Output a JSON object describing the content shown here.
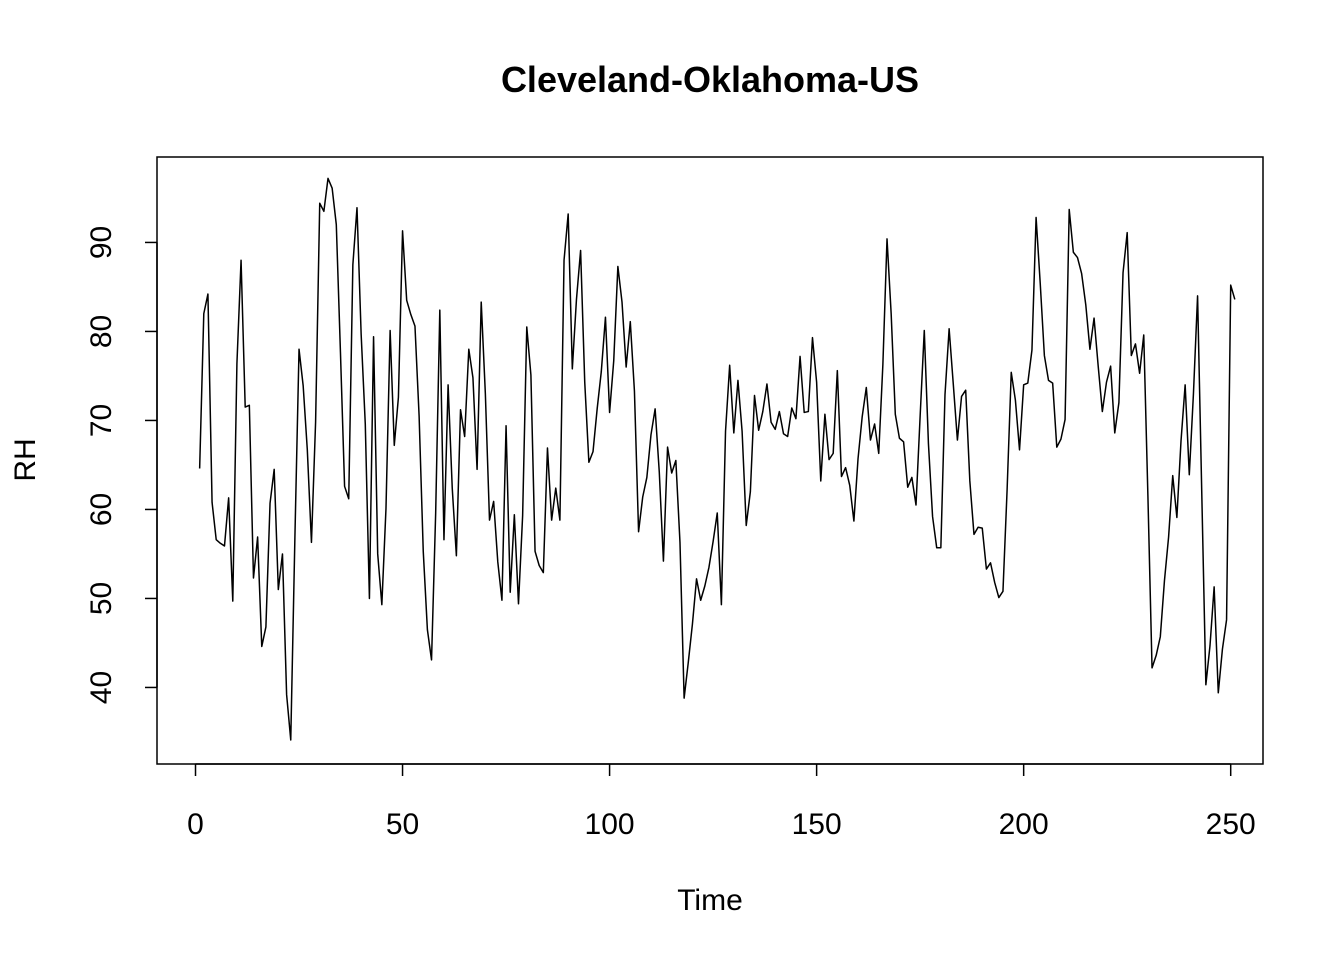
{
  "chart_data": {
    "type": "line",
    "title": "Cleveland-Oklahoma-US",
    "xlabel": "Time",
    "ylabel": "RH",
    "xlim": [
      -9.3,
      257.8
    ],
    "ylim": [
      31.4,
      99.6
    ],
    "x_ticks": [
      0,
      50,
      100,
      150,
      200,
      250
    ],
    "y_ticks": [
      40,
      50,
      60,
      70,
      80,
      90
    ],
    "grid": false,
    "legend": "none",
    "line_color": "#000000",
    "series": [
      {
        "x_start": 1,
        "values": [
          64.6,
          82.0,
          84.2,
          60.8,
          56.6,
          56.2,
          55.9,
          61.3,
          49.7,
          76.4,
          88.0,
          71.5,
          71.7,
          52.3,
          56.9,
          44.6,
          46.8,
          60.7,
          64.5,
          51.0,
          55.0,
          39.2,
          34.1,
          56.8,
          78.0,
          73.9,
          66.7,
          56.3,
          69.8,
          94.4,
          93.5,
          97.2,
          96.1,
          92.0,
          77.7,
          62.6,
          61.2,
          87.5,
          93.9,
          79.7,
          69.6,
          50.0,
          79.4,
          55.0,
          49.3,
          60.1,
          80.1,
          67.2,
          72.6,
          91.3,
          83.5,
          81.9,
          80.6,
          70.5,
          55.3,
          46.5,
          43.1,
          59.6,
          82.4,
          56.6,
          74.0,
          62.4,
          54.8,
          71.2,
          68.2,
          78.0,
          74.8,
          64.5,
          83.3,
          73.0,
          58.8,
          60.9,
          54.1,
          49.8,
          69.4,
          50.7,
          59.4,
          49.4,
          59.3,
          80.5,
          75.1,
          55.3,
          53.7,
          52.9,
          66.9,
          58.8,
          62.4,
          58.8,
          88.0,
          93.2,
          75.8,
          83.6,
          89.1,
          74.3,
          65.3,
          66.5,
          71.3,
          75.5,
          81.6,
          70.9,
          76.7,
          87.3,
          83.3,
          76.0,
          81.1,
          73.3,
          57.5,
          61.4,
          63.6,
          68.4,
          71.3,
          64.2,
          54.2,
          67.0,
          64.1,
          65.5,
          56.3,
          38.8,
          42.8,
          47.1,
          52.2,
          49.8,
          51.4,
          53.5,
          56.4,
          59.6,
          49.3,
          68.8,
          76.2,
          68.6,
          74.5,
          68.8,
          58.2,
          62.0,
          72.8,
          68.9,
          71.0,
          74.1,
          69.8,
          69.0,
          71.0,
          68.5,
          68.2,
          71.4,
          70.2,
          77.2,
          70.9,
          71.0,
          79.3,
          74.3,
          63.2,
          70.7,
          65.6,
          66.3,
          75.6,
          63.7,
          64.7,
          62.7,
          58.7,
          65.7,
          70.4,
          73.7,
          67.8,
          69.6,
          66.3,
          76.3,
          90.4,
          82.0,
          70.7,
          68.0,
          67.6,
          62.5,
          63.6,
          60.5,
          70.5,
          80.1,
          67.4,
          59.2,
          55.7,
          55.7,
          72.9,
          80.3,
          74.1,
          67.8,
          72.7,
          73.4,
          63.2,
          57.2,
          58.0,
          57.9,
          53.3,
          54.0,
          51.8,
          50.1,
          50.8,
          62.2,
          75.4,
          72.3,
          66.7,
          74.0,
          74.2,
          77.9,
          92.8,
          85.4,
          77.3,
          74.5,
          74.2,
          67.0,
          67.9,
          70.1,
          93.7,
          88.9,
          88.3,
          86.5,
          83.0,
          78.0,
          81.5,
          76.1,
          71.0,
          74.3,
          76.1,
          68.6,
          72.0,
          86.6,
          91.1,
          77.3,
          78.6,
          75.3,
          79.6,
          61.6,
          42.2,
          43.6,
          45.7,
          52.0,
          56.9,
          63.8,
          59.1,
          67.7,
          74.0,
          63.9,
          73.0,
          84.0,
          62.1,
          40.3,
          44.7,
          51.3,
          39.4,
          44.3,
          47.6,
          85.2,
          83.6
        ]
      }
    ]
  }
}
